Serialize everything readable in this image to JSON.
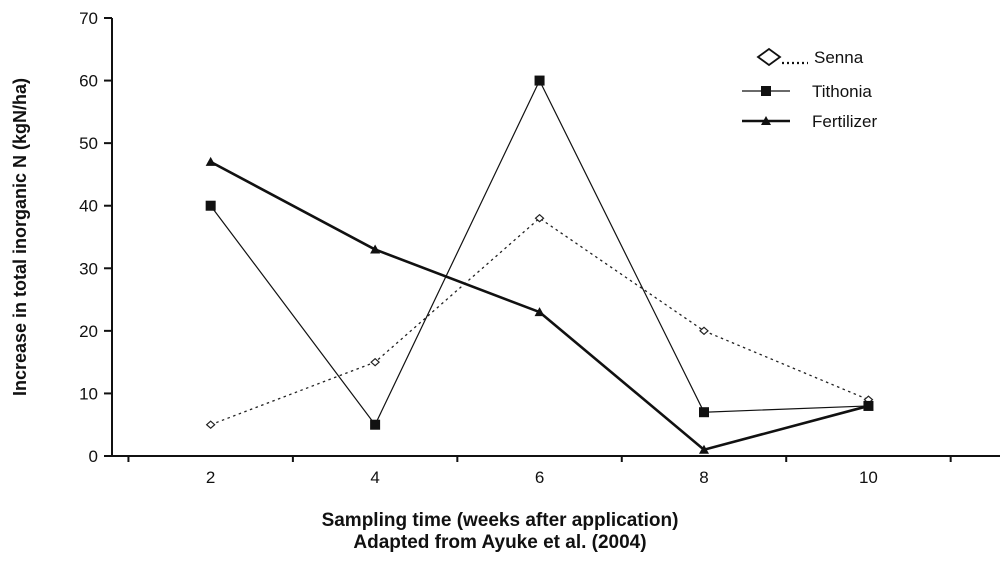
{
  "chart_data": {
    "type": "line",
    "x": [
      2,
      4,
      6,
      8,
      10
    ],
    "xlabel": "Sampling time (weeks after application)",
    "ylabel": "Increase in total inorganic N (kgN/ha)",
    "xlim": [
      0.8,
      11.6
    ],
    "ylim": [
      0,
      70
    ],
    "yticks": [
      0,
      10,
      20,
      30,
      40,
      50,
      60,
      70
    ],
    "xticks": [
      2,
      4,
      6,
      8,
      10
    ],
    "grid": false,
    "legend_position": "top-right",
    "series": [
      {
        "name": "Senna",
        "values": [
          5,
          15,
          38,
          20,
          9
        ],
        "color": "#222222",
        "line": "dotted",
        "marker": "open-diamond"
      },
      {
        "name": "Tithonia",
        "values": [
          40,
          5,
          60,
          7,
          8
        ],
        "color": "#111111",
        "line": "thin-solid",
        "marker": "filled-square"
      },
      {
        "name": "Fertilizer",
        "values": [
          47,
          33,
          23,
          1,
          8
        ],
        "color": "#111111",
        "line": "thick-solid",
        "marker": "filled-triangle"
      }
    ]
  },
  "caption": {
    "line1": "Sampling time (weeks after application)",
    "line2": "Adapted from Ayuke et al. (2004)"
  }
}
